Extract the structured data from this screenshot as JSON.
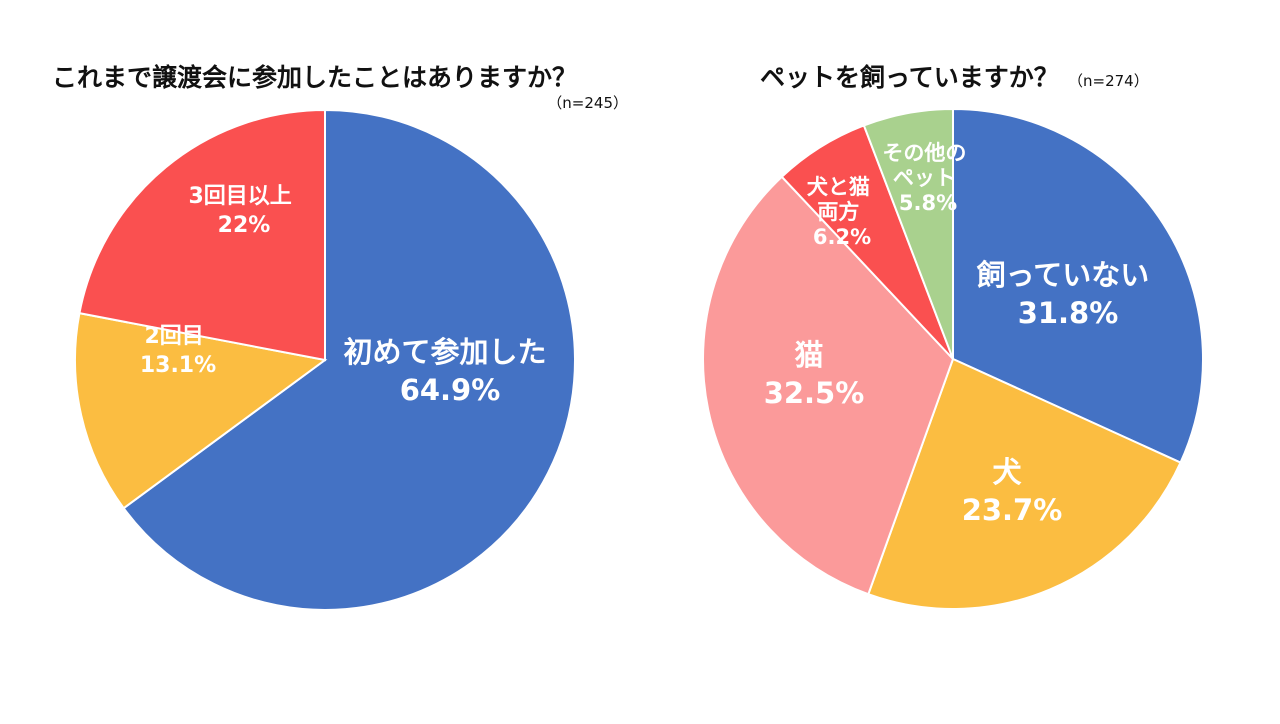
{
  "chart_data": [
    {
      "type": "pie",
      "title": "これまで譲渡会に参加したことはありますか？",
      "note": "（n=245）",
      "slices": [
        {
          "name": "初めて参加した",
          "label": "64.9%",
          "value": 64.9,
          "color": "#4472c4"
        },
        {
          "name": "2回目",
          "label": "13.1%",
          "value": 13.1,
          "color": "#fbbd41"
        },
        {
          "name": "3回目以上",
          "label": "22%",
          "value": 22.0,
          "color": "#fa5050"
        }
      ]
    },
    {
      "type": "pie",
      "title": "ペットを飼っていますか？",
      "note": "（n=274）",
      "slices": [
        {
          "name": "飼っていない",
          "label": "31.8%",
          "value": 31.8,
          "color": "#4472c4"
        },
        {
          "name": "犬",
          "label": "23.7%",
          "value": 23.7,
          "color": "#fbbd41"
        },
        {
          "name": "猫",
          "label": "32.5%",
          "value": 32.5,
          "color": "#fb9a9a"
        },
        {
          "name": "犬と猫両方",
          "label": "6.2%",
          "value": 6.2,
          "color": "#fa5050"
        },
        {
          "name": "その他のペット",
          "label": "5.8%",
          "value": 5.8,
          "color": "#a9d18e"
        }
      ]
    }
  ]
}
